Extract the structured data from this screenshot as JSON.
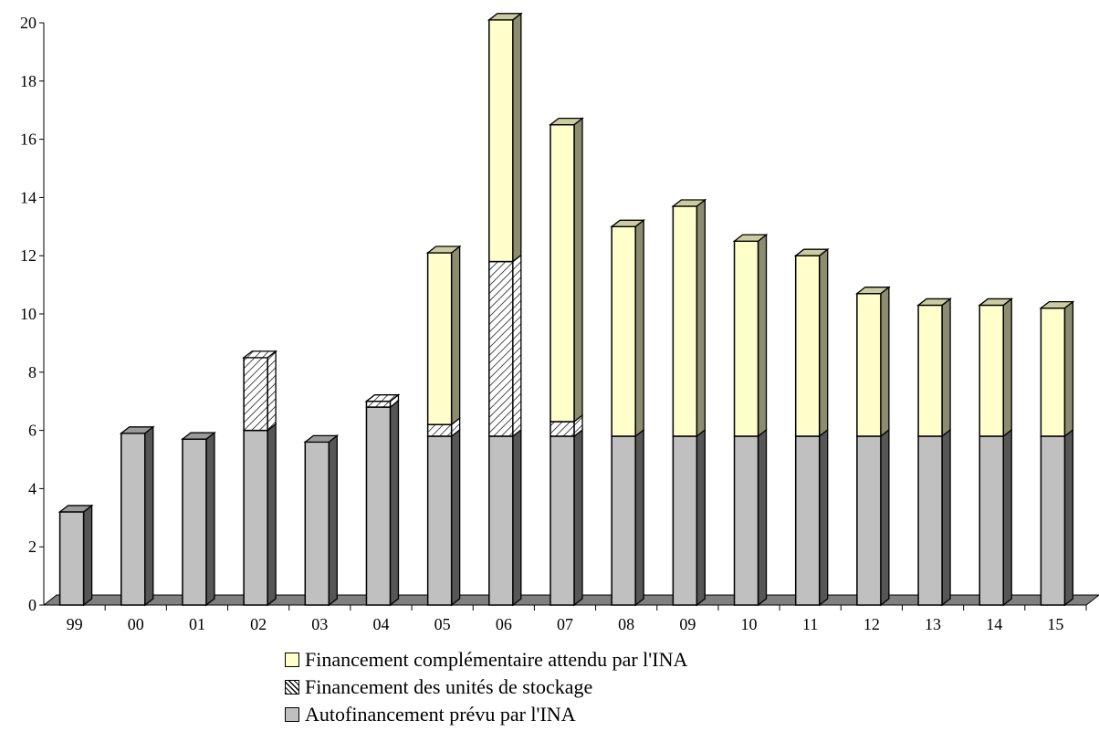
{
  "chart_data": {
    "type": "bar",
    "stacked": true,
    "three_d": true,
    "categories": [
      "99",
      "00",
      "01",
      "02",
      "03",
      "04",
      "05",
      "06",
      "07",
      "08",
      "09",
      "10",
      "11",
      "12",
      "13",
      "14",
      "15"
    ],
    "series": [
      {
        "name": "Autofinancement prévu par l'INA",
        "color": "#c0c0c0",
        "pattern": "solid",
        "values": [
          3.2,
          5.9,
          5.7,
          6.0,
          5.6,
          6.8,
          5.8,
          5.8,
          5.8,
          5.8,
          5.8,
          5.8,
          5.8,
          5.8,
          5.8,
          5.8,
          5.8
        ]
      },
      {
        "name": "Financement des unités de stockage",
        "color": "#ffffff",
        "pattern": "diagonal-hatch",
        "values": [
          0,
          0,
          0,
          2.5,
          0,
          0.2,
          0.4,
          6.0,
          0.5,
          0,
          0,
          0,
          0,
          0,
          0,
          0,
          0
        ]
      },
      {
        "name": "Financement complémentaire attendu par l'INA",
        "color": "#ffffcc",
        "pattern": "solid",
        "values": [
          0,
          0,
          0,
          0,
          0,
          0,
          5.9,
          8.3,
          10.2,
          7.2,
          7.9,
          6.7,
          6.2,
          4.9,
          4.5,
          4.5,
          4.4
        ]
      }
    ],
    "ylim": [
      0,
      20
    ],
    "yticks": [
      "0",
      "2",
      "4",
      "6",
      "8",
      "10",
      "12",
      "14",
      "16",
      "18",
      "20"
    ],
    "title": "",
    "xlabel": "",
    "ylabel": "",
    "grid": false,
    "legend_position": "bottom",
    "floor_color": "#808080"
  },
  "legend": {
    "items": [
      {
        "label": "Financement complémentaire attendu par l'INA"
      },
      {
        "label": "Financement des unités de stockage"
      },
      {
        "label": "Autofinancement prévu par l'INA"
      }
    ]
  }
}
